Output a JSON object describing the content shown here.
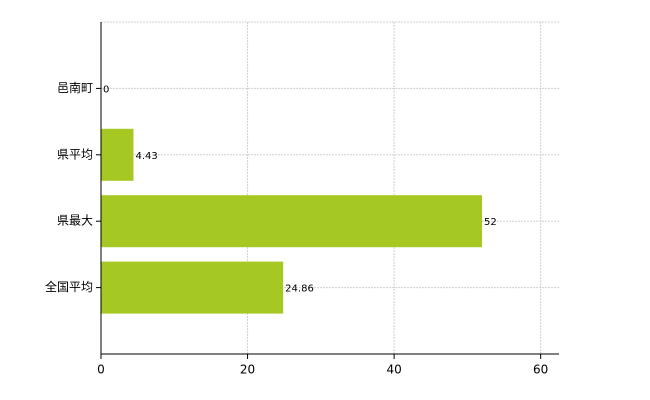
{
  "chart_data": {
    "type": "barh",
    "categories": [
      "邑南町",
      "県平均",
      "県最大",
      "全国平均"
    ],
    "values": [
      0,
      4.43,
      52,
      24.86
    ],
    "color": "#a5c823",
    "xlim": [
      0,
      62.5
    ],
    "xticks": [
      0,
      20,
      40,
      60
    ],
    "grid": true
  }
}
